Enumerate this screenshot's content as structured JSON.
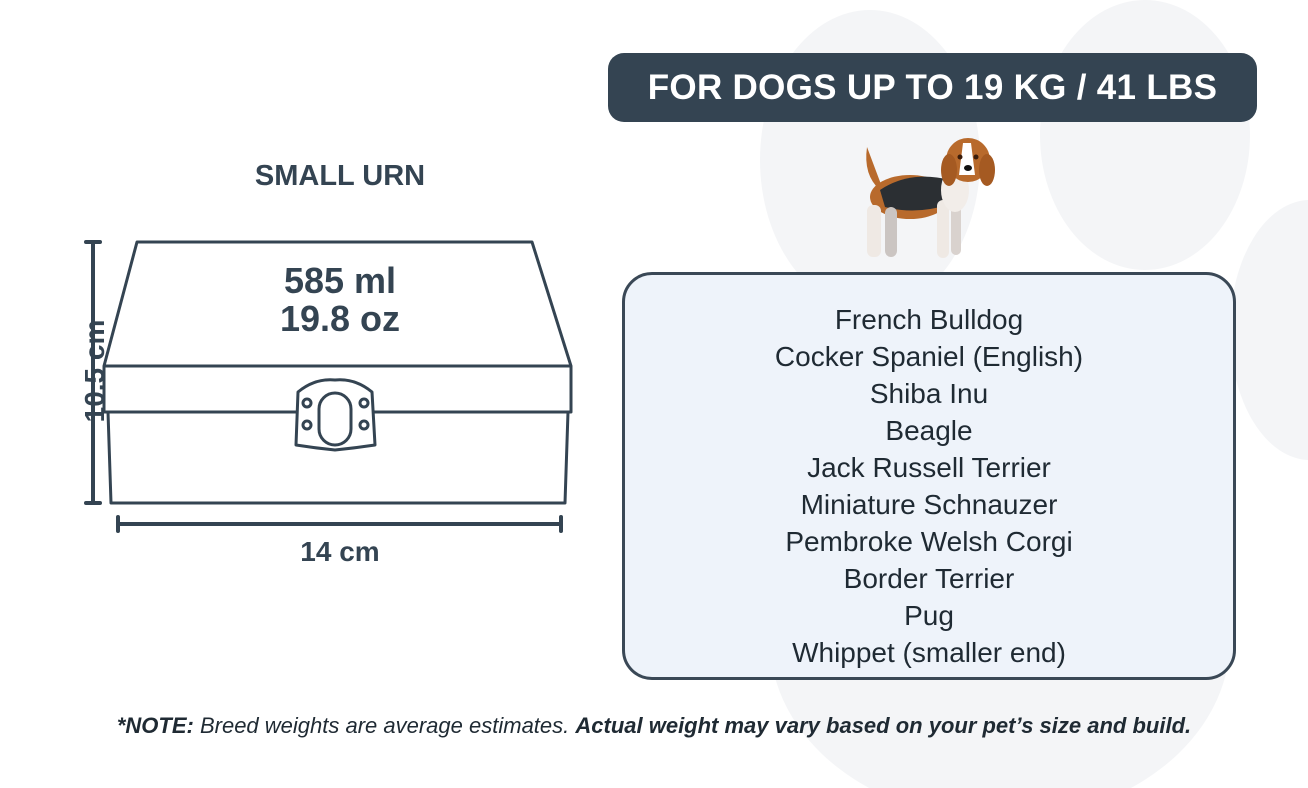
{
  "header": {
    "title": "FOR DOGS UP TO 19 KG / 41 LBS"
  },
  "urn": {
    "title": "SMALL URN",
    "volume_ml": "585 ml",
    "volume_oz": "19.8 oz",
    "height": "10.5 cm",
    "width": "14 cm"
  },
  "breeds": [
    "French Bulldog",
    "Cocker Spaniel (English)",
    "Shiba Inu",
    "Beagle",
    "Jack Russell Terrier",
    "Miniature Schnauzer",
    "Pembroke Welsh Corgi",
    "Border Terrier",
    "Pug",
    "Whippet (smaller end)"
  ],
  "note": {
    "prefix": "*NOTE:",
    "text": " Breed weights are average estimates. ",
    "bold": "Actual weight may vary based on your pet’s size and build."
  },
  "colors": {
    "primary": "#344452",
    "panel": "#eef3fa",
    "paw": "#f3f4f6"
  }
}
